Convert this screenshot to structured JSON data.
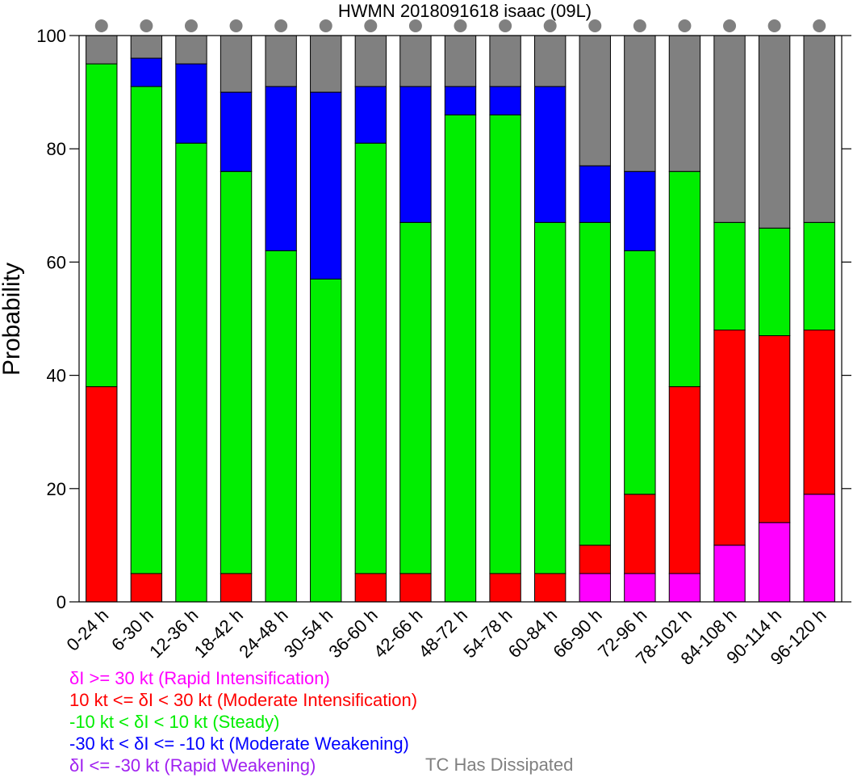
{
  "chart_data": {
    "type": "bar",
    "stacked": true,
    "title": "HWMN 2018091618 isaac (09L)",
    "ylabel": "Probability",
    "xlabel": "",
    "ylim": [
      0,
      100
    ],
    "yticks": [
      "0",
      "20",
      "40",
      "60",
      "80",
      "100"
    ],
    "categories": [
      "0-24 h",
      "6-30 h",
      "12-36 h",
      "18-42 h",
      "24-48 h",
      "30-54 h",
      "36-60 h",
      "42-66 h",
      "48-72 h",
      "54-78 h",
      "60-84 h",
      "66-90 h",
      "72-96 h",
      "78-102 h",
      "84-108 h",
      "90-114 h",
      "96-120 h"
    ],
    "series": [
      {
        "name": "δI >= 30 kt (Rapid Intensification)",
        "color": "#ff00ff",
        "values": [
          0,
          0,
          0,
          0,
          0,
          0,
          0,
          0,
          0,
          0,
          0,
          5,
          5,
          5,
          10,
          14,
          19
        ]
      },
      {
        "name": "10 kt <= δI < 30 kt (Moderate Intensification)",
        "color": "#ff0000",
        "values": [
          38,
          5,
          0,
          5,
          0,
          0,
          5,
          5,
          0,
          5,
          5,
          5,
          14,
          33,
          38,
          33,
          29
        ]
      },
      {
        "name": "-10 kt < δI < 10 kt (Steady)",
        "color": "#00ee00",
        "values": [
          57,
          86,
          81,
          71,
          62,
          57,
          76,
          62,
          86,
          81,
          62,
          57,
          43,
          38,
          19,
          19,
          19
        ]
      },
      {
        "name": "-30 kt < δI <= -10 kt (Moderate Weakening)",
        "color": "#0000ff",
        "values": [
          0,
          5,
          14,
          14,
          29,
          33,
          10,
          24,
          5,
          5,
          24,
          10,
          14,
          0,
          0,
          0,
          0
        ]
      },
      {
        "name": "δI <= -30 kt (Rapid Weakening)",
        "color": "#a020f0",
        "values": [
          0,
          0,
          0,
          0,
          0,
          0,
          0,
          0,
          0,
          0,
          0,
          0,
          0,
          0,
          0,
          0,
          0
        ]
      },
      {
        "name": "TC Has Dissipated",
        "color": "#808080",
        "values": [
          5,
          4,
          5,
          10,
          9,
          10,
          9,
          9,
          9,
          9,
          9,
          23,
          24,
          24,
          33,
          34,
          33
        ]
      }
    ],
    "marker_color": "#808080"
  },
  "legend": {
    "ri": "δI >= 30 kt (Rapid Intensification)",
    "mi": "10 kt <= δI < 30 kt (Moderate Intensification)",
    "steady": "-10 kt < δI < 10 kt (Steady)",
    "mw": "-30 kt < δI <= -10 kt (Moderate Weakening)",
    "rw": "δI <= -30 kt (Rapid Weakening)",
    "dissipated": "TC Has Dissipated"
  }
}
